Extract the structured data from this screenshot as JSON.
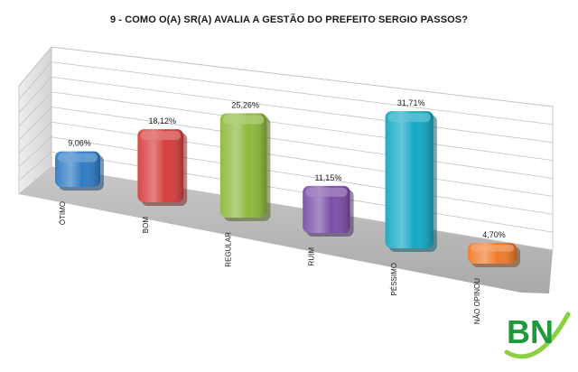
{
  "chart_data": {
    "type": "bar",
    "title": "9 - COMO O(A) SR(A) AVALIA A GESTÃO DO PREFEITO SERGIO PASSOS?",
    "categories": [
      "ÓTIMO",
      "BOM",
      "REGULAR",
      "RUIM",
      "PÉSSIMO",
      "NÃO OPINOU"
    ],
    "values": [
      9.06,
      18.12,
      25.26,
      11.15,
      31.71,
      4.7
    ],
    "value_labels": [
      "9,06%",
      "18,12%",
      "25,26%",
      "11,15%",
      "31,71%",
      "4,70%"
    ],
    "colors": [
      "#2E7BC4",
      "#D63E3E",
      "#8DB83C",
      "#7B4FA8",
      "#13A8C4",
      "#EF7B2A"
    ],
    "ylim": [
      0,
      40
    ],
    "grid": true,
    "style": "3d-perspective"
  },
  "logo": {
    "text": "BN",
    "colors": {
      "primary": "#1F9A3A",
      "accent": "#8BD13F"
    }
  }
}
